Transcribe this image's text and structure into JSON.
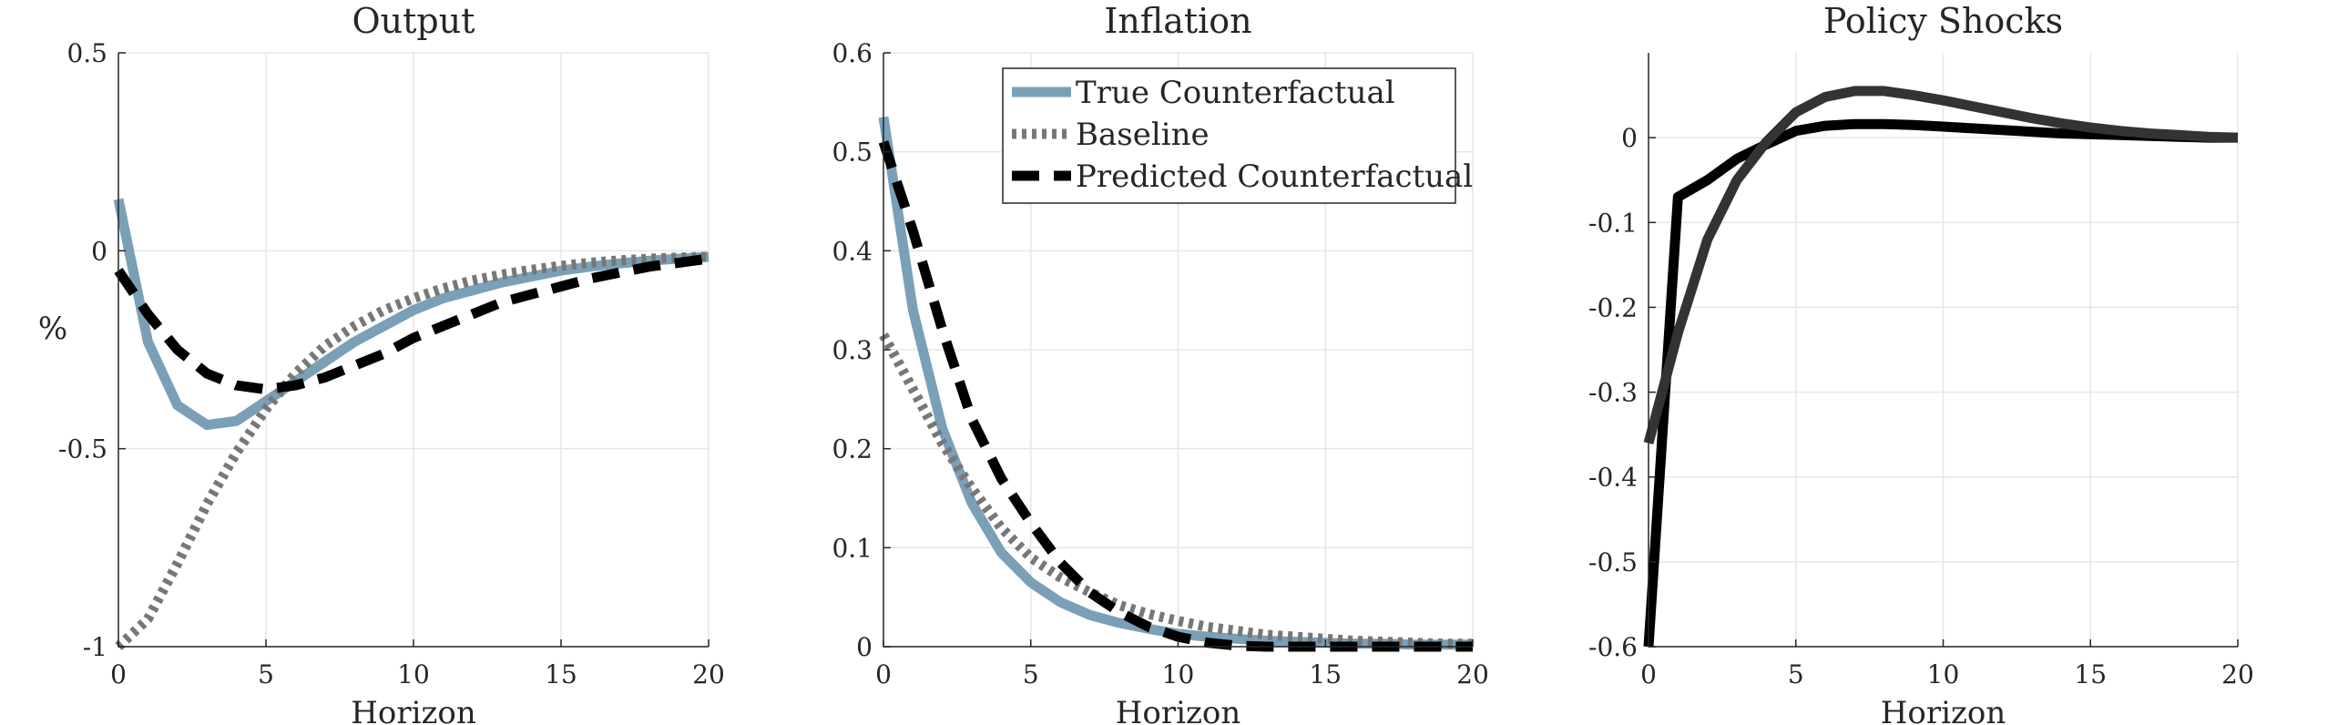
{
  "chart_data": [
    {
      "type": "line",
      "title": "Output",
      "xlabel": "Horizon",
      "ylabel": "%",
      "xlim": [
        0,
        20
      ],
      "ylim": [
        -1,
        0.5
      ],
      "xticks": [
        "0",
        "5",
        "10",
        "15",
        "20"
      ],
      "yticks": [
        "-1",
        "-0.5",
        "0",
        "0.5"
      ],
      "grid": true,
      "x": [
        0,
        1,
        2,
        3,
        4,
        5,
        6,
        7,
        8,
        9,
        10,
        11,
        12,
        13,
        14,
        15,
        16,
        17,
        18,
        19,
        20
      ],
      "series": [
        {
          "name": "True Counterfactual",
          "color": "#7aa0b8",
          "style": "solid",
          "values": [
            0.13,
            -0.23,
            -0.39,
            -0.44,
            -0.43,
            -0.38,
            -0.33,
            -0.28,
            -0.23,
            -0.19,
            -0.15,
            -0.12,
            -0.1,
            -0.08,
            -0.065,
            -0.05,
            -0.04,
            -0.032,
            -0.025,
            -0.02,
            -0.015
          ]
        },
        {
          "name": "Baseline",
          "color": "#777777",
          "style": "dotted",
          "values": [
            -1,
            -0.93,
            -0.79,
            -0.64,
            -0.51,
            -0.4,
            -0.31,
            -0.24,
            -0.19,
            -0.15,
            -0.12,
            -0.095,
            -0.075,
            -0.06,
            -0.048,
            -0.038,
            -0.03,
            -0.024,
            -0.02,
            -0.017,
            -0.015
          ]
        },
        {
          "name": "Predicted Counterfactual",
          "color": "#000000",
          "style": "dashed",
          "values": [
            -0.05,
            -0.16,
            -0.25,
            -0.31,
            -0.34,
            -0.35,
            -0.34,
            -0.32,
            -0.29,
            -0.26,
            -0.22,
            -0.19,
            -0.16,
            -0.13,
            -0.11,
            -0.09,
            -0.07,
            -0.055,
            -0.04,
            -0.03,
            -0.02
          ]
        }
      ]
    },
    {
      "type": "line",
      "title": "Inflation",
      "xlabel": "Horizon",
      "ylabel": "",
      "xlim": [
        0,
        20
      ],
      "ylim": [
        0,
        0.6
      ],
      "xticks": [
        "0",
        "5",
        "10",
        "15",
        "20"
      ],
      "yticks": [
        "0",
        "0.1",
        "0.2",
        "0.3",
        "0.4",
        "0.5",
        "0.6"
      ],
      "grid": true,
      "legend": {
        "placement": "top-right",
        "entries": [
          "True Counterfactual",
          "Baseline",
          "Predicted Counterfactual"
        ]
      },
      "x": [
        0,
        1,
        2,
        3,
        4,
        5,
        6,
        7,
        8,
        9,
        10,
        11,
        12,
        13,
        14,
        15,
        16,
        17,
        18,
        19,
        20
      ],
      "series": [
        {
          "name": "True Counterfactual",
          "color": "#7aa0b8",
          "style": "solid",
          "values": [
            0.535,
            0.34,
            0.22,
            0.145,
            0.095,
            0.065,
            0.045,
            0.032,
            0.024,
            0.018,
            0.013,
            0.01,
            0.008,
            0.006,
            0.005,
            0.004,
            0.003,
            0.003,
            0.002,
            0.002,
            0.002
          ]
        },
        {
          "name": "Baseline",
          "color": "#777777",
          "style": "dotted",
          "values": [
            0.315,
            0.26,
            0.205,
            0.16,
            0.12,
            0.09,
            0.07,
            0.055,
            0.042,
            0.033,
            0.026,
            0.02,
            0.016,
            0.012,
            0.01,
            0.008,
            0.006,
            0.005,
            0.004,
            0.003,
            0.003
          ]
        },
        {
          "name": "Predicted Counterfactual",
          "color": "#000000",
          "style": "dashed",
          "values": [
            0.51,
            0.42,
            0.32,
            0.23,
            0.17,
            0.125,
            0.085,
            0.055,
            0.035,
            0.02,
            0.01,
            0.004,
            0.001,
            0,
            0,
            0,
            0,
            0,
            0,
            0,
            0
          ]
        }
      ]
    },
    {
      "type": "line",
      "title": "Policy Shocks",
      "xlabel": "Horizon",
      "ylabel": "",
      "xlim": [
        0,
        20
      ],
      "ylim": [
        -0.6,
        0.1
      ],
      "xticks": [
        "0",
        "5",
        "10",
        "15",
        "20"
      ],
      "yticks": [
        "-0.6",
        "-0.5",
        "-0.4",
        "-0.3",
        "-0.2",
        "-0.1",
        "0"
      ],
      "grid": true,
      "x": [
        0,
        1,
        2,
        3,
        4,
        5,
        6,
        7,
        8,
        9,
        10,
        11,
        12,
        13,
        14,
        15,
        16,
        17,
        18,
        19,
        20
      ],
      "series": [
        {
          "color": "#000000",
          "style": "solid",
          "values": [
            -0.6,
            -0.07,
            -0.05,
            -0.025,
            -0.008,
            0.008,
            0.014,
            0.016,
            0.016,
            0.015,
            0.013,
            0.011,
            0.009,
            0.007,
            0.005,
            0.004,
            0.003,
            0.002,
            0.001,
            0,
            0
          ]
        },
        {
          "color": "#333333",
          "style": "solid",
          "values": [
            -0.36,
            -0.23,
            -0.12,
            -0.05,
            -0.005,
            0.03,
            0.048,
            0.055,
            0.055,
            0.05,
            0.044,
            0.037,
            0.03,
            0.023,
            0.017,
            0.012,
            0.008,
            0.005,
            0.003,
            0.001,
            0
          ]
        }
      ]
    }
  ]
}
